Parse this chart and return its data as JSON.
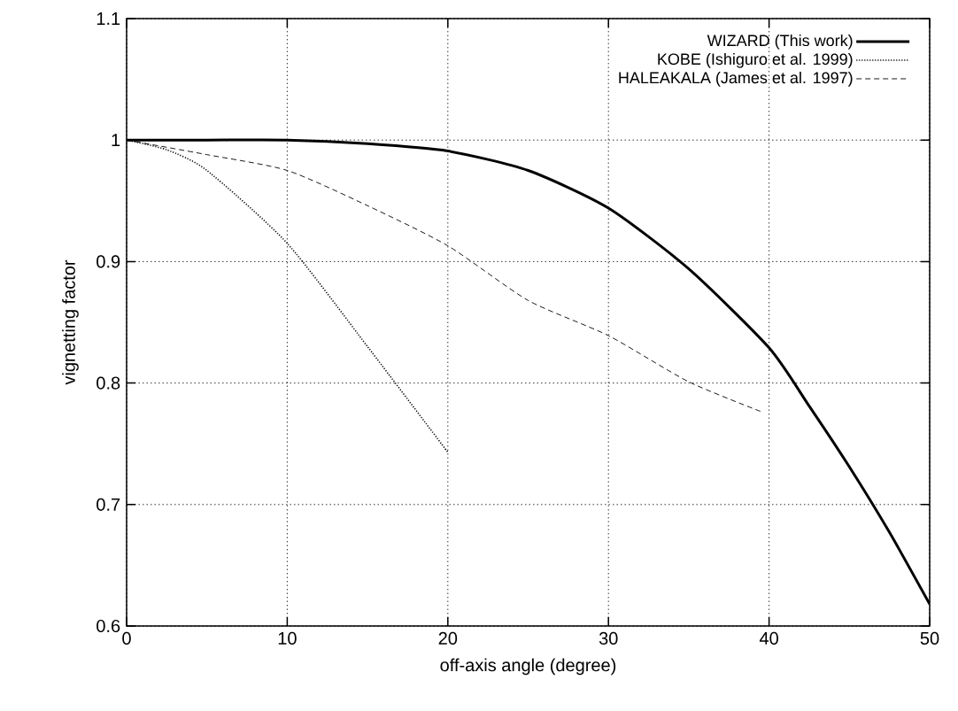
{
  "chart_data": {
    "type": "line",
    "xlabel": "off-axis angle (degree)",
    "ylabel": "vignetting factor",
    "xlim": [
      0,
      50
    ],
    "ylim": [
      0.6,
      1.1
    ],
    "xticks": [
      0,
      10,
      20,
      30,
      40,
      50
    ],
    "yticks": [
      0.6,
      0.7,
      0.8,
      0.9,
      {
        "value": 1,
        "label": "1"
      },
      1.1
    ],
    "grid": true,
    "legend": "top right",
    "series": [
      {
        "name": "WIZARD (This work)",
        "color": "#000000",
        "line_style": "solid",
        "x": [
          0,
          5,
          10,
          15,
          20,
          25,
          30,
          35,
          40,
          42.5,
          45,
          47.5,
          50
        ],
        "values": [
          1.0,
          1.0,
          1.0,
          0.997,
          0.991,
          0.975,
          0.944,
          0.894,
          0.829,
          0.781,
          0.731,
          0.677,
          0.618
        ]
      },
      {
        "name": "KOBE (Ishiguro et al. 1999)",
        "color": "#000000",
        "line_style": "dotted",
        "x": [
          0,
          2.5,
          5,
          10,
          15,
          20
        ],
        "values": [
          1.0,
          0.992,
          0.975,
          0.915,
          0.83,
          0.743
        ]
      },
      {
        "name": "HALEAKALA (James et al. 1997)",
        "color": "#000000",
        "line_style": "dashed",
        "x": [
          0,
          5,
          10,
          15,
          20,
          25,
          30,
          35,
          39.6
        ],
        "values": [
          1.0,
          0.988,
          0.975,
          0.946,
          0.913,
          0.868,
          0.839,
          0.801,
          0.776
        ]
      }
    ]
  }
}
